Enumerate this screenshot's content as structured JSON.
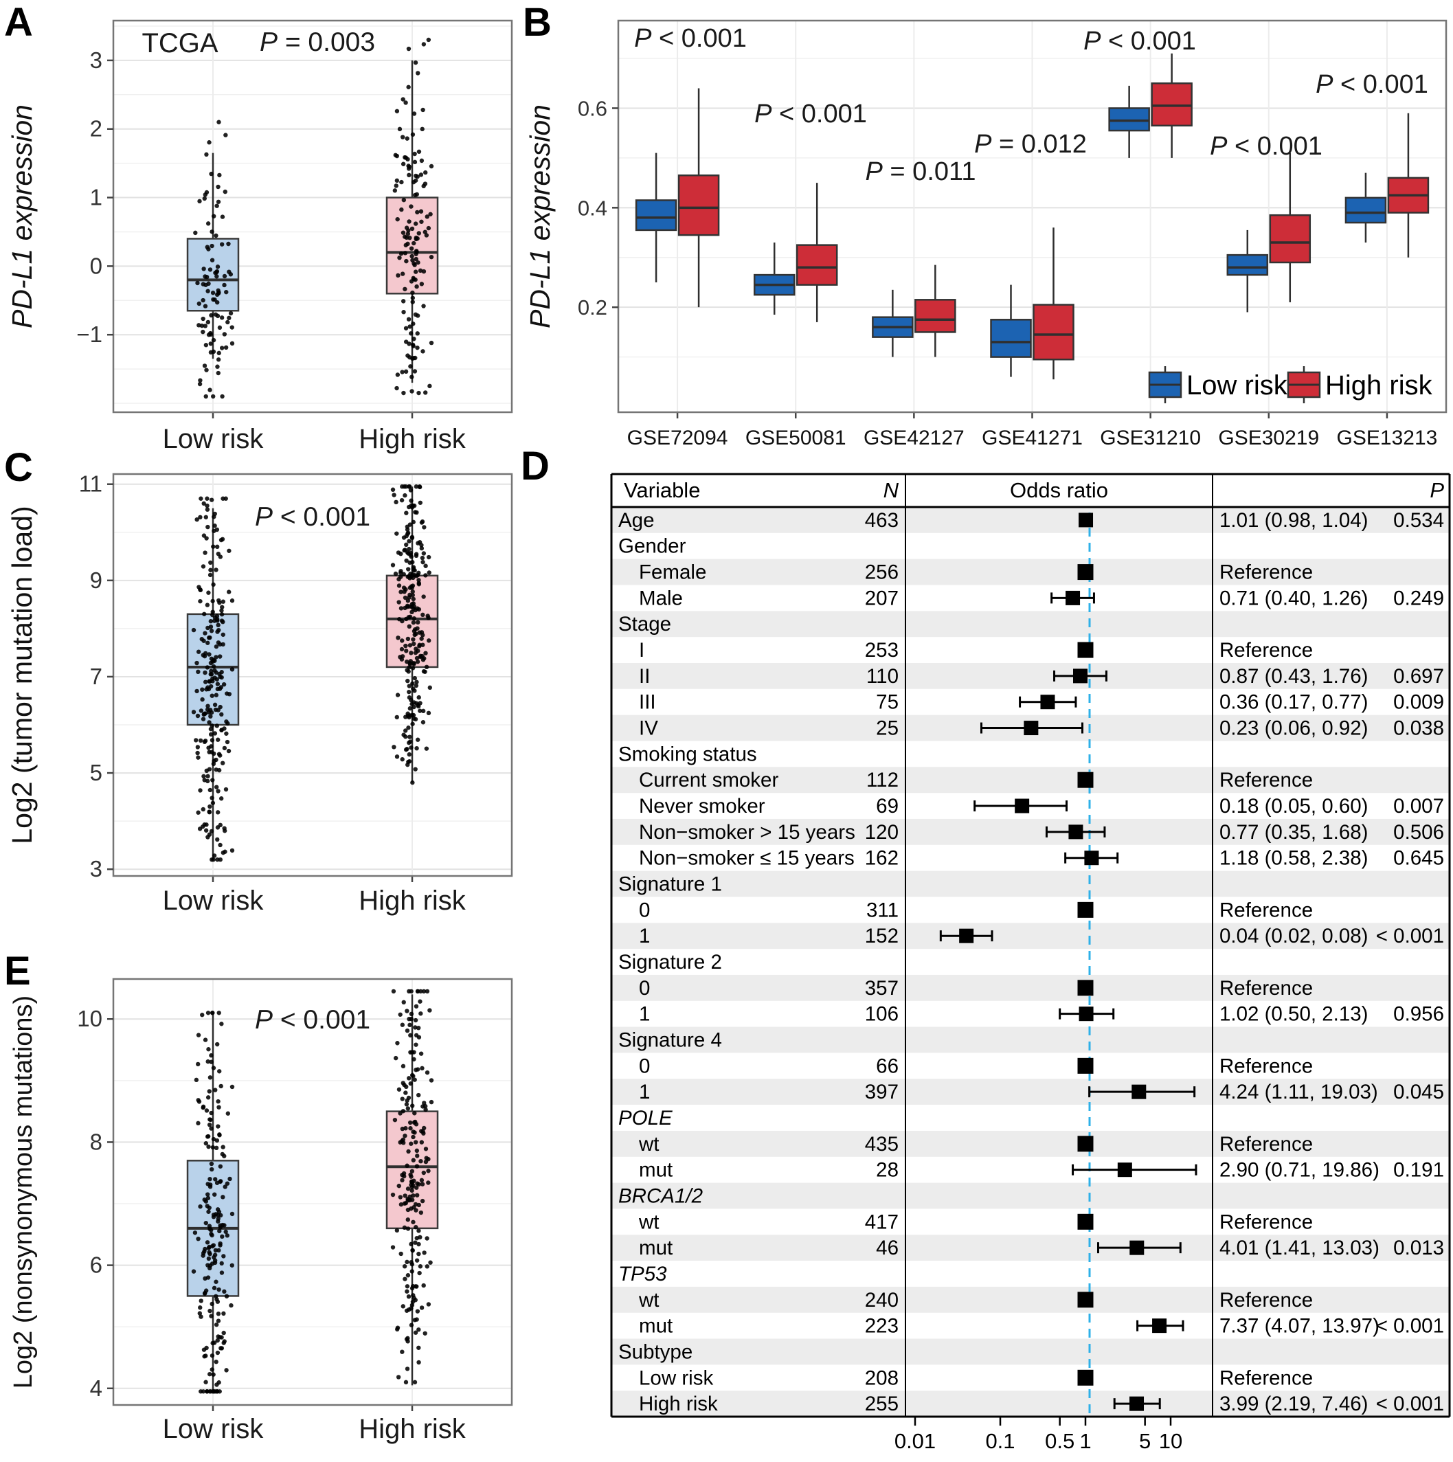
{
  "panels": {
    "a": "A",
    "b": "B",
    "c": "C",
    "d": "D",
    "e": "E"
  },
  "colors": {
    "low_risk_light": "#b9d2ea",
    "high_risk_light": "#f4c8ce",
    "low_risk_dark": "#1c63b2",
    "high_risk_dark": "#cd2d38",
    "refline": "#2eb0e8",
    "row_shade": "#ececec"
  },
  "chart_data": [
    {
      "id": "A",
      "type": "box",
      "title": "TCGA",
      "p_text": "P = 0.003",
      "ylabel": "PD-L1 expression",
      "ylabel_italic": true,
      "ylim": [
        -2.13,
        3.58
      ],
      "minor_step": 0.5,
      "yticks": [
        {
          "v": 3,
          "label": "3"
        },
        {
          "v": 2,
          "label": "2"
        },
        {
          "v": 1,
          "label": "1"
        },
        {
          "v": 0,
          "label": "0"
        },
        {
          "v": -1,
          "label": "−1"
        }
      ],
      "categories": [
        "Low risk",
        "High risk"
      ],
      "boxes": [
        {
          "name": "Low risk",
          "fill": "#b9d2ea",
          "whisker_low": -1.35,
          "q1": -0.65,
          "median": -0.2,
          "q3": 0.4,
          "whisker_high": 1.65,
          "points_n": 95,
          "points_min": -1.9,
          "points_max": 2.1
        },
        {
          "name": "High risk",
          "fill": "#f4c8ce",
          "whisker_low": -1.7,
          "q1": -0.4,
          "median": 0.2,
          "q3": 1.0,
          "whisker_high": 3.0,
          "points_n": 140,
          "points_min": -1.85,
          "points_max": 3.3
        }
      ]
    },
    {
      "id": "B",
      "type": "grouped_box",
      "ylabel": "PD-L1 expression",
      "ylabel_italic": true,
      "ylim": [
        -0.011,
        0.776
      ],
      "minor_step": 0.1,
      "yticks": [
        {
          "v": 0.6,
          "label": "0.6"
        },
        {
          "v": 0.4,
          "label": "0.4"
        },
        {
          "v": 0.2,
          "label": "0.2"
        }
      ],
      "legend": [
        {
          "label": "Low risk",
          "fill": "#1c63b2"
        },
        {
          "label": "High risk",
          "fill": "#cd2d38"
        }
      ],
      "groups": [
        {
          "name": "GSE72094",
          "p_text": "P < 0.001",
          "low": {
            "wl": 0.25,
            "q1": 0.355,
            "med": 0.38,
            "q3": 0.415,
            "wh": 0.51
          },
          "high": {
            "wl": 0.2,
            "q1": 0.345,
            "med": 0.4,
            "q3": 0.465,
            "wh": 0.64
          }
        },
        {
          "name": "GSE50081",
          "p_text": "P < 0.001",
          "low": {
            "wl": 0.185,
            "q1": 0.225,
            "med": 0.245,
            "q3": 0.265,
            "wh": 0.33
          },
          "high": {
            "wl": 0.17,
            "q1": 0.245,
            "med": 0.28,
            "q3": 0.325,
            "wh": 0.45
          }
        },
        {
          "name": "GSE42127",
          "p_text": "P = 0.011",
          "low": {
            "wl": 0.1,
            "q1": 0.14,
            "med": 0.16,
            "q3": 0.18,
            "wh": 0.235
          },
          "high": {
            "wl": 0.1,
            "q1": 0.15,
            "med": 0.175,
            "q3": 0.215,
            "wh": 0.285
          }
        },
        {
          "name": "GSE41271",
          "p_text": "P = 0.012",
          "low": {
            "wl": 0.06,
            "q1": 0.1,
            "med": 0.13,
            "q3": 0.175,
            "wh": 0.245
          },
          "high": {
            "wl": 0.055,
            "q1": 0.095,
            "med": 0.145,
            "q3": 0.205,
            "wh": 0.36
          }
        },
        {
          "name": "GSE31210",
          "p_text": "P < 0.001",
          "low": {
            "wl": 0.5,
            "q1": 0.555,
            "med": 0.575,
            "q3": 0.6,
            "wh": 0.645
          },
          "high": {
            "wl": 0.5,
            "q1": 0.565,
            "med": 0.605,
            "q3": 0.65,
            "wh": 0.71
          }
        },
        {
          "name": "GSE30219",
          "p_text": "P < 0.001",
          "low": {
            "wl": 0.19,
            "q1": 0.265,
            "med": 0.28,
            "q3": 0.305,
            "wh": 0.355
          },
          "high": {
            "wl": 0.21,
            "q1": 0.29,
            "med": 0.33,
            "q3": 0.385,
            "wh": 0.51
          }
        },
        {
          "name": "GSE13213",
          "p_text": "P < 0.001",
          "low": {
            "wl": 0.33,
            "q1": 0.37,
            "med": 0.39,
            "q3": 0.42,
            "wh": 0.47
          },
          "high": {
            "wl": 0.3,
            "q1": 0.39,
            "med": 0.425,
            "q3": 0.46,
            "wh": 0.59
          }
        }
      ]
    },
    {
      "id": "C",
      "type": "box",
      "title": null,
      "p_text": "P < 0.001",
      "ylabel": "Log2 (tumor mutation load)",
      "ylabel_italic": false,
      "ylim": [
        2.86,
        11.21
      ],
      "minor_step": 1,
      "yticks": [
        {
          "v": 11,
          "label": "11"
        },
        {
          "v": 9,
          "label": "9"
        },
        {
          "v": 7,
          "label": "7"
        },
        {
          "v": 5,
          "label": "5"
        },
        {
          "v": 3,
          "label": "3"
        }
      ],
      "categories": [
        "Low risk",
        "High risk"
      ],
      "boxes": [
        {
          "name": "Low risk",
          "fill": "#b9d2ea",
          "whisker_low": 3.2,
          "q1": 6.0,
          "median": 7.2,
          "q3": 8.3,
          "whisker_high": 10.5,
          "points_n": 225,
          "points_min": 3.2,
          "points_max": 10.7
        },
        {
          "name": "High risk",
          "fill": "#f4c8ce",
          "whisker_low": 4.8,
          "q1": 7.2,
          "median": 8.2,
          "q3": 9.1,
          "whisker_high": 10.95,
          "points_n": 245,
          "points_min": 4.8,
          "points_max": 10.95
        }
      ]
    },
    {
      "id": "E",
      "type": "box",
      "title": null,
      "p_text": "P < 0.001",
      "ylabel": "Log2 (nonsynonymous mutations)",
      "ylabel_italic": false,
      "ylim": [
        3.73,
        10.65
      ],
      "minor_step": 1,
      "yticks": [
        {
          "v": 10,
          "label": "10"
        },
        {
          "v": 8,
          "label": "8"
        },
        {
          "v": 6,
          "label": "6"
        },
        {
          "v": 4,
          "label": "4"
        }
      ],
      "categories": [
        "Low risk",
        "High risk"
      ],
      "boxes": [
        {
          "name": "Low risk",
          "fill": "#b9d2ea",
          "whisker_low": 3.95,
          "q1": 5.5,
          "median": 6.6,
          "q3": 7.7,
          "whisker_high": 10.1,
          "points_n": 195,
          "points_min": 3.95,
          "points_max": 10.1
        },
        {
          "name": "High risk",
          "fill": "#f4c8ce",
          "whisker_low": 4.05,
          "q1": 6.6,
          "median": 7.6,
          "q3": 8.5,
          "whisker_high": 10.4,
          "points_n": 215,
          "points_min": 4.1,
          "points_max": 10.45
        }
      ]
    },
    {
      "id": "D",
      "type": "forest",
      "headers": {
        "variable": "Variable",
        "n": "N",
        "odds_ratio": "Odds ratio",
        "p": "P"
      },
      "refline": 1,
      "axis_ticks": [
        {
          "v": 0.01,
          "label": "0.01"
        },
        {
          "v": 0.1,
          "label": "0.1"
        },
        {
          "v": 0.5,
          "label": "0.5"
        },
        {
          "v": 1,
          "label": "1"
        },
        {
          "v": 5,
          "label": "5"
        },
        {
          "v": 10,
          "label": "10"
        }
      ],
      "rows": [
        {
          "label": "Age",
          "indent": 0,
          "n": "463",
          "or": 1.01,
          "lo": 0.98,
          "hi": 1.04,
          "estimate": "1.01 (0.98, 1.04)",
          "p": "0.534"
        },
        {
          "label": "Gender",
          "group": true
        },
        {
          "label": "Female",
          "indent": 1,
          "n": "256",
          "ref": true,
          "estimate": "Reference"
        },
        {
          "label": "Male",
          "indent": 1,
          "n": "207",
          "or": 0.71,
          "lo": 0.4,
          "hi": 1.26,
          "estimate": "0.71 (0.40, 1.26)",
          "p": "0.249"
        },
        {
          "label": "Stage",
          "group": true
        },
        {
          "label": "I",
          "indent": 1,
          "n": "253",
          "ref": true,
          "estimate": "Reference"
        },
        {
          "label": "II",
          "indent": 1,
          "n": "110",
          "or": 0.87,
          "lo": 0.43,
          "hi": 1.76,
          "estimate": "0.87 (0.43, 1.76)",
          "p": "0.697"
        },
        {
          "label": "III",
          "indent": 1,
          "n": "75",
          "or": 0.36,
          "lo": 0.17,
          "hi": 0.77,
          "estimate": "0.36 (0.17, 0.77)",
          "p": "0.009"
        },
        {
          "label": "IV",
          "indent": 1,
          "n": "25",
          "or": 0.23,
          "lo": 0.06,
          "hi": 0.92,
          "estimate": "0.23 (0.06, 0.92)",
          "p": "0.038"
        },
        {
          "label": "Smoking status",
          "group": true
        },
        {
          "label": "Current smoker",
          "indent": 1,
          "n": "112",
          "ref": true,
          "estimate": "Reference"
        },
        {
          "label": "Never smoker",
          "indent": 1,
          "n": "69",
          "or": 0.18,
          "lo": 0.05,
          "hi": 0.6,
          "estimate": "0.18 (0.05, 0.60)",
          "p": "0.007"
        },
        {
          "label": "Non−smoker > 15 years",
          "indent": 1,
          "n": "120",
          "or": 0.77,
          "lo": 0.35,
          "hi": 1.68,
          "estimate": "0.77 (0.35, 1.68)",
          "p": "0.506"
        },
        {
          "label": "Non−smoker ≤ 15 years",
          "indent": 1,
          "n": "162",
          "or": 1.18,
          "lo": 0.58,
          "hi": 2.38,
          "estimate": "1.18 (0.58, 2.38)",
          "p": "0.645"
        },
        {
          "label": "Signature 1",
          "group": true
        },
        {
          "label": "0",
          "indent": 1,
          "n": "311",
          "ref": true,
          "estimate": "Reference"
        },
        {
          "label": "1",
          "indent": 1,
          "n": "152",
          "or": 0.04,
          "lo": 0.02,
          "hi": 0.08,
          "estimate": "0.04 (0.02, 0.08)",
          "p": "< 0.001"
        },
        {
          "label": "Signature 2",
          "group": true
        },
        {
          "label": "0",
          "indent": 1,
          "n": "357",
          "ref": true,
          "estimate": "Reference"
        },
        {
          "label": "1",
          "indent": 1,
          "n": "106",
          "or": 1.02,
          "lo": 0.5,
          "hi": 2.13,
          "estimate": "1.02 (0.50, 2.13)",
          "p": "0.956"
        },
        {
          "label": "Signature 4",
          "group": true
        },
        {
          "label": "0",
          "indent": 1,
          "n": "66",
          "ref": true,
          "estimate": "Reference"
        },
        {
          "label": "1",
          "indent": 1,
          "n": "397",
          "or": 4.24,
          "lo": 1.11,
          "hi": 19.03,
          "estimate": "4.24 (1.11, 19.03)",
          "p": "0.045"
        },
        {
          "label": "POLE",
          "group": true,
          "italic": true
        },
        {
          "label": "wt",
          "indent": 1,
          "n": "435",
          "ref": true,
          "estimate": "Reference"
        },
        {
          "label": "mut",
          "indent": 1,
          "n": "28",
          "or": 2.9,
          "lo": 0.71,
          "hi": 19.86,
          "estimate": "2.90 (0.71, 19.86)",
          "p": "0.191"
        },
        {
          "label": "BRCA1/2",
          "group": true,
          "italic": true
        },
        {
          "label": "wt",
          "indent": 1,
          "n": "417",
          "ref": true,
          "estimate": "Reference"
        },
        {
          "label": "mut",
          "indent": 1,
          "n": "46",
          "or": 4.01,
          "lo": 1.41,
          "hi": 13.03,
          "estimate": "4.01 (1.41, 13.03)",
          "p": "0.013"
        },
        {
          "label": "TP53",
          "group": true,
          "italic": true
        },
        {
          "label": "wt",
          "indent": 1,
          "n": "240",
          "ref": true,
          "estimate": "Reference"
        },
        {
          "label": "mut",
          "indent": 1,
          "n": "223",
          "or": 7.37,
          "lo": 4.07,
          "hi": 13.97,
          "estimate": "7.37 (4.07, 13.97)",
          "p": "< 0.001"
        },
        {
          "label": "Subtype",
          "group": true
        },
        {
          "label": "Low risk",
          "indent": 1,
          "n": "208",
          "ref": true,
          "estimate": "Reference"
        },
        {
          "label": "High risk",
          "indent": 1,
          "n": "255",
          "or": 3.99,
          "lo": 2.19,
          "hi": 7.46,
          "estimate": "3.99 (2.19, 7.46)",
          "p": "< 0.001"
        }
      ]
    }
  ]
}
